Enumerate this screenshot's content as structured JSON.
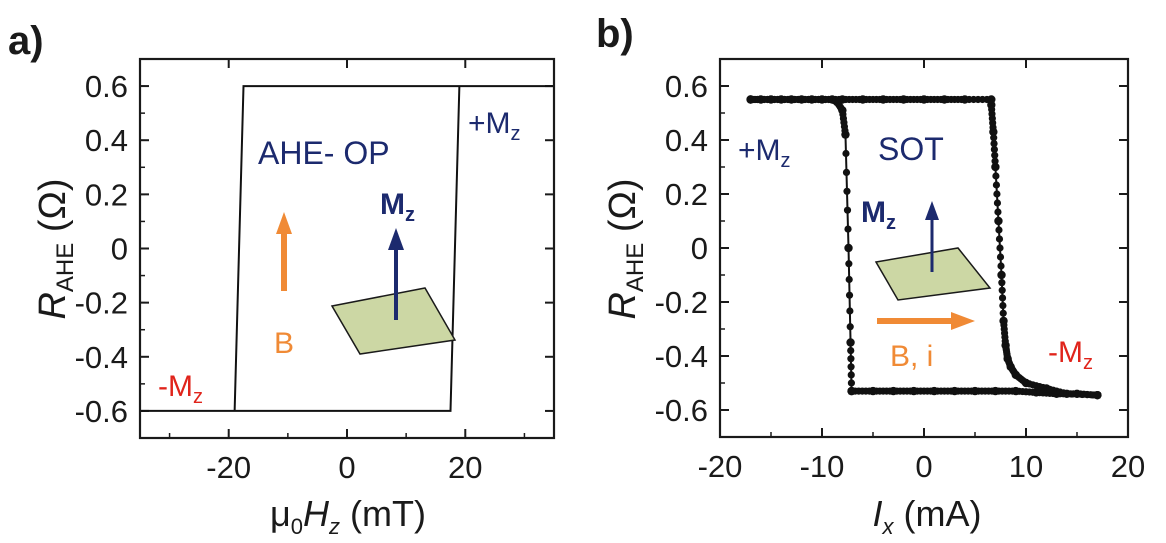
{
  "chart_data": [
    {
      "panel_label": "a)",
      "type": "line",
      "title": "",
      "xlabel": {
        "prefix": "μ",
        "prefix_sub": "0",
        "italic": "H",
        "italic_sub": "z",
        "suffix": " (mT)"
      },
      "ylabel": {
        "italic": "R",
        "sub": "AHE",
        "suffix": " (Ω)"
      },
      "xlim": [
        -35,
        35
      ],
      "ylim": [
        -0.7,
        0.7
      ],
      "xticks": [
        -20,
        0,
        20
      ],
      "xtick_labels": [
        "-20",
        "0",
        "20"
      ],
      "yticks": [
        0.6,
        0.4,
        0.2,
        0,
        -0.2,
        -0.4,
        -0.6
      ],
      "ytick_labels": [
        "0.6",
        "0.4",
        "0.2",
        "0",
        "-0.2",
        "-0.4",
        "-0.6"
      ],
      "grid": false,
      "series": [
        {
          "x": [
            -35,
            -19,
            -17.5,
            35,
            19,
            17.5,
            -35
          ],
          "y": [
            -0.6,
            -0.6,
            0.6,
            0.6,
            0.6,
            -0.6,
            -0.6
          ],
          "markers": false
        }
      ],
      "annotations": [
        {
          "text": "AHE- OP",
          "color": "#1c2a6e"
        },
        {
          "text": "+M",
          "sub": "z",
          "color": "#1c2a6e"
        },
        {
          "text": "-M",
          "sub": "z",
          "color": "#e0241b"
        },
        {
          "text": "M",
          "sub": "z",
          "bold": true,
          "color": "#1c2a6e"
        },
        {
          "text": "B",
          "color": "#f08a35"
        }
      ]
    },
    {
      "panel_label": "b)",
      "type": "line",
      "title": "",
      "xlabel": {
        "italic": "I",
        "italic_sub": "x",
        "suffix": " (mA)"
      },
      "ylabel": {
        "italic": "R",
        "sub": "AHE",
        "suffix": " (Ω)"
      },
      "xlim": [
        -20,
        20
      ],
      "ylim": [
        -0.7,
        0.7
      ],
      "xticks": [
        -20,
        -10,
        0,
        10,
        20
      ],
      "xtick_labels": [
        "-20",
        "-10",
        "0",
        "10",
        "20"
      ],
      "yticks": [
        0.6,
        0.4,
        0.2,
        0,
        -0.2,
        -0.4,
        -0.6
      ],
      "ytick_labels": [
        "0.6",
        "0.4",
        "0.2",
        "0",
        "-0.2",
        "-0.4",
        "-0.6"
      ],
      "grid": false,
      "series": [
        {
          "x": [
            -17,
            -15,
            -13,
            -11,
            -9,
            -8.5,
            -8,
            -7.7,
            -7.4,
            -7.2,
            -7.1
          ],
          "y": [
            0.55,
            0.55,
            0.55,
            0.55,
            0.55,
            0.54,
            0.51,
            0.42,
            0.0,
            -0.35,
            -0.53
          ],
          "markers": true
        },
        {
          "x": [
            -7.1,
            -5,
            -3,
            -1,
            1,
            3,
            5,
            7,
            9,
            11,
            13,
            15,
            17
          ],
          "y": [
            -0.53,
            -0.53,
            -0.53,
            -0.53,
            -0.53,
            -0.53,
            -0.53,
            -0.53,
            -0.53,
            -0.535,
            -0.54,
            -0.54,
            -0.545
          ],
          "markers": true
        },
        {
          "x": [
            17,
            14,
            12,
            10,
            9,
            8.5,
            8.2,
            8,
            7.8,
            7.6,
            7.3,
            7,
            6.8,
            6.6
          ],
          "y": [
            -0.545,
            -0.54,
            -0.52,
            -0.5,
            -0.47,
            -0.44,
            -0.41,
            -0.36,
            -0.27,
            -0.1,
            0.1,
            0.3,
            0.43,
            0.53
          ],
          "markers": true
        },
        {
          "x": [
            6.6,
            4,
            2,
            0,
            -2,
            -4,
            -6,
            -8,
            -10,
            -12,
            -14,
            -16,
            -17
          ],
          "y": [
            0.55,
            0.55,
            0.55,
            0.55,
            0.55,
            0.55,
            0.55,
            0.55,
            0.55,
            0.55,
            0.55,
            0.55,
            0.55
          ],
          "markers": true
        }
      ],
      "annotations": [
        {
          "text": "SOT",
          "color": "#1c2a6e"
        },
        {
          "text": "+M",
          "sub": "z",
          "color": "#1c2a6e"
        },
        {
          "text": "-M",
          "sub": "z",
          "color": "#e0241b"
        },
        {
          "text": "M",
          "sub": "z",
          "bold": true,
          "color": "#1c2a6e"
        },
        {
          "text": "B, i",
          "color": "#f08a35"
        }
      ]
    }
  ],
  "colors": {
    "navy": "#1c2a6e",
    "red": "#e0241b",
    "orange": "#f08a35",
    "plane_fill": "#ccd7a4",
    "axis": "#1a1a1a",
    "data": "#111111"
  }
}
